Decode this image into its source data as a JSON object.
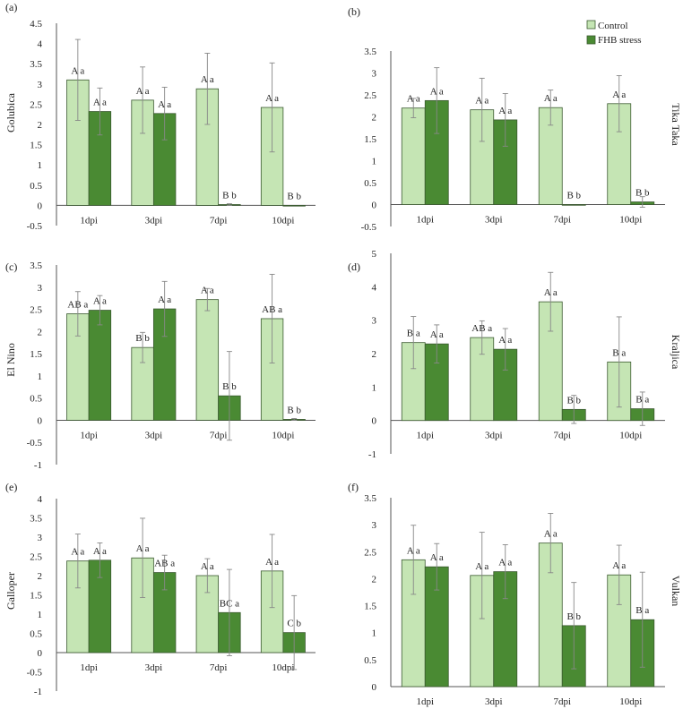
{
  "colors": {
    "control": "#c5e5b4",
    "fhb": "#4a8a33",
    "bar_stroke": "#3b5a30",
    "axis": "#555555",
    "error": "#888888"
  },
  "legend": {
    "control": "Control",
    "fhb": "FHB stress"
  },
  "chart_data": [
    {
      "panel": "(a)",
      "type": "bar",
      "ylabel": "Golubica",
      "ylabel_side": "left",
      "categories": [
        "1dpi",
        "3dpi",
        "7dpi",
        "10dpi"
      ],
      "yticks": [
        "-0.5",
        "0",
        "0.5",
        "1",
        "1.5",
        "2",
        "2.5",
        "3",
        "3.5",
        "4",
        "4.5"
      ],
      "ylim": [
        -0.5,
        4.5
      ],
      "series": [
        {
          "name": "Control",
          "values": [
            3.1,
            2.6,
            2.88,
            2.42
          ],
          "errors": [
            1.0,
            0.82,
            0.88,
            1.1
          ],
          "labels": [
            "A a",
            "A a",
            "A a",
            "A a"
          ]
        },
        {
          "name": "FHB stress",
          "values": [
            2.32,
            2.27,
            0.02,
            0.0
          ],
          "errors": [
            0.58,
            0.65,
            0.02,
            0.0
          ],
          "labels": [
            "A a",
            "A a",
            "B b",
            "B b"
          ]
        }
      ]
    },
    {
      "panel": "(b)",
      "type": "bar",
      "ylabel": "Tika Taka",
      "ylabel_side": "right",
      "categories": [
        "1dpi",
        "3dpi",
        "7dpi",
        "10dpi"
      ],
      "yticks": [
        "-0.5",
        "0",
        "0.5",
        "1",
        "1.5",
        "2",
        "2.5",
        "3",
        "3.5"
      ],
      "ylim": [
        -0.5,
        3.5
      ],
      "series": [
        {
          "name": "Control",
          "values": [
            2.2,
            2.16,
            2.21,
            2.3
          ],
          "errors": [
            0.22,
            0.72,
            0.4,
            0.64
          ],
          "labels": [
            "A a",
            "A a",
            "A a",
            "A a"
          ]
        },
        {
          "name": "FHB stress",
          "values": [
            2.37,
            1.93,
            0.0,
            0.06
          ],
          "errors": [
            0.75,
            0.6,
            0.0,
            0.12
          ],
          "labels": [
            "A a",
            "A a",
            "B b",
            "B b"
          ]
        }
      ]
    },
    {
      "panel": "(c)",
      "type": "bar",
      "ylabel": "El Nino",
      "ylabel_side": "left",
      "categories": [
        "1dpi",
        "3dpi",
        "7dpi",
        "10dpi"
      ],
      "yticks": [
        "-1",
        "-0.5",
        "0",
        "0.5",
        "1",
        "1.5",
        "2",
        "2.5",
        "3",
        "3.5"
      ],
      "ylim": [
        -1,
        3.5
      ],
      "series": [
        {
          "name": "Control",
          "values": [
            2.4,
            1.64,
            2.72,
            2.29
          ],
          "errors": [
            0.5,
            0.34,
            0.25,
            1.0
          ],
          "labels": [
            "AB a",
            "B b",
            "A a",
            "AB a"
          ]
        },
        {
          "name": "FHB stress",
          "values": [
            2.48,
            2.51,
            0.55,
            0.02
          ],
          "errors": [
            0.33,
            0.62,
            1.0,
            0.02
          ],
          "labels": [
            "A a",
            "A a",
            "B b",
            "B b"
          ]
        }
      ]
    },
    {
      "panel": "(d)",
      "type": "bar",
      "ylabel": "Kraljica",
      "ylabel_side": "right",
      "categories": [
        "1dpi",
        "3dpi",
        "7dpi",
        "10dpi"
      ],
      "yticks": [
        "-1",
        "0",
        "1",
        "2",
        "3",
        "4",
        "5"
      ],
      "ylim": [
        -1,
        5
      ],
      "series": [
        {
          "name": "Control",
          "values": [
            2.33,
            2.48,
            3.55,
            1.75
          ],
          "errors": [
            0.78,
            0.5,
            0.88,
            1.35
          ],
          "labels": [
            "B a",
            "AB a",
            "A a",
            "B a"
          ]
        },
        {
          "name": "FHB stress",
          "values": [
            2.29,
            2.13,
            0.33,
            0.35
          ],
          "errors": [
            0.57,
            0.62,
            0.42,
            0.5
          ],
          "labels": [
            "A a",
            "A a",
            "B b",
            "B a"
          ]
        }
      ]
    },
    {
      "panel": "(e)",
      "type": "bar",
      "ylabel": "Galloper",
      "ylabel_side": "left",
      "categories": [
        "1dpi",
        "3dpi",
        "7dpi",
        "10dpi"
      ],
      "yticks": [
        "-1",
        "-0.5",
        "0",
        "0.5",
        "1",
        "1.5",
        "2",
        "2.5",
        "3",
        "3.5",
        "4"
      ],
      "ylim": [
        -1,
        4
      ],
      "series": [
        {
          "name": "Control",
          "values": [
            2.38,
            2.46,
            2.0,
            2.12
          ],
          "errors": [
            0.7,
            1.03,
            0.44,
            0.95
          ],
          "labels": [
            "A a",
            "A a",
            "A a",
            "A a"
          ]
        },
        {
          "name": "FHB stress",
          "values": [
            2.4,
            2.08,
            1.04,
            0.52
          ],
          "errors": [
            0.45,
            0.45,
            1.12,
            0.96
          ],
          "labels": [
            "A a",
            "AB a",
            "BC a",
            "C b"
          ]
        }
      ]
    },
    {
      "panel": "(f)",
      "type": "bar",
      "ylabel": "Vulkan",
      "ylabel_side": "right",
      "categories": [
        "1dpi",
        "3dpi",
        "7dpi",
        "10dpi"
      ],
      "yticks": [
        "0",
        "0.5",
        "1",
        "1.5",
        "2",
        "2.5",
        "3",
        "3.5"
      ],
      "ylim": [
        0,
        3.5
      ],
      "series": [
        {
          "name": "Control",
          "values": [
            2.35,
            2.06,
            2.66,
            2.07
          ],
          "errors": [
            0.64,
            0.8,
            0.55,
            0.55
          ],
          "labels": [
            "A a",
            "A a",
            "A a",
            "A a"
          ]
        },
        {
          "name": "FHB stress",
          "values": [
            2.22,
            2.13,
            1.13,
            1.24
          ],
          "errors": [
            0.43,
            0.5,
            0.8,
            0.88
          ],
          "labels": [
            "A a",
            "A a",
            "B b",
            "B a"
          ]
        }
      ]
    }
  ]
}
